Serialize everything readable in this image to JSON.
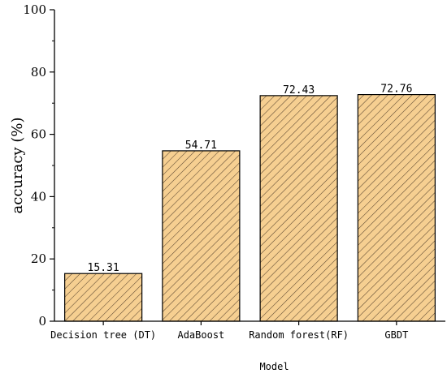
{
  "chart_data": {
    "type": "bar",
    "categories": [
      "Decision tree (DT)",
      "AdaBoost",
      "Random forest(RF)",
      "GBDT"
    ],
    "values": [
      15.31,
      54.71,
      72.43,
      72.76
    ],
    "value_labels": [
      "15.31",
      "54.71",
      "72.43",
      "72.76"
    ],
    "xlabel": "Model",
    "ylabel": "accuracy (%)",
    "ylim": [
      0,
      100
    ],
    "yticks": [
      "0",
      "20",
      "40",
      "60",
      "80",
      "100"
    ],
    "grid": false,
    "bar_color": "#f6cf91",
    "hatch_color": "#5a4630"
  }
}
